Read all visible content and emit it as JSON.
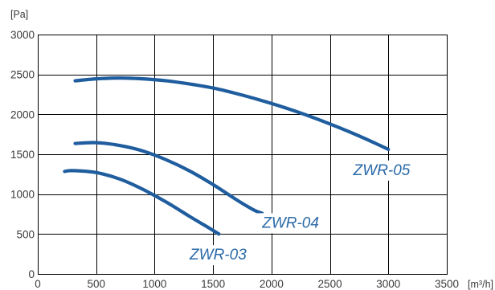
{
  "chart_data": {
    "type": "line",
    "title": "",
    "xlabel": "[m³/h]",
    "ylabel": "[Pa]",
    "xlim": [
      0,
      3500
    ],
    "ylim": [
      0,
      3000
    ],
    "x_ticks": [
      "0",
      "500",
      "1000",
      "1500",
      "2000",
      "2500",
      "3000",
      "3500"
    ],
    "y_ticks": [
      "0",
      "500",
      "1000",
      "1500",
      "2000",
      "2500",
      "3000"
    ],
    "grid": true,
    "line_color": "#1f5d9e",
    "label_color": "#2a6aa8",
    "series": [
      {
        "name": "ZWR-03",
        "points": [
          [
            230,
            1285
          ],
          [
            300,
            1295
          ],
          [
            500,
            1270
          ],
          [
            700,
            1190
          ],
          [
            900,
            1060
          ],
          [
            1100,
            900
          ],
          [
            1300,
            720
          ],
          [
            1450,
            590
          ],
          [
            1550,
            500
          ]
        ]
      },
      {
        "name": "ZWR-04",
        "points": [
          [
            320,
            1635
          ],
          [
            500,
            1645
          ],
          [
            700,
            1610
          ],
          [
            900,
            1540
          ],
          [
            1100,
            1430
          ],
          [
            1300,
            1290
          ],
          [
            1500,
            1120
          ],
          [
            1700,
            930
          ],
          [
            1850,
            800
          ],
          [
            1920,
            760
          ]
        ]
      },
      {
        "name": "ZWR-05",
        "points": [
          [
            320,
            2420
          ],
          [
            500,
            2445
          ],
          [
            700,
            2455
          ],
          [
            900,
            2445
          ],
          [
            1100,
            2420
          ],
          [
            1300,
            2380
          ],
          [
            1500,
            2330
          ],
          [
            1700,
            2260
          ],
          [
            1900,
            2180
          ],
          [
            2100,
            2090
          ],
          [
            2300,
            1990
          ],
          [
            2500,
            1880
          ],
          [
            2700,
            1760
          ],
          [
            2900,
            1630
          ],
          [
            3000,
            1560
          ]
        ]
      }
    ]
  }
}
